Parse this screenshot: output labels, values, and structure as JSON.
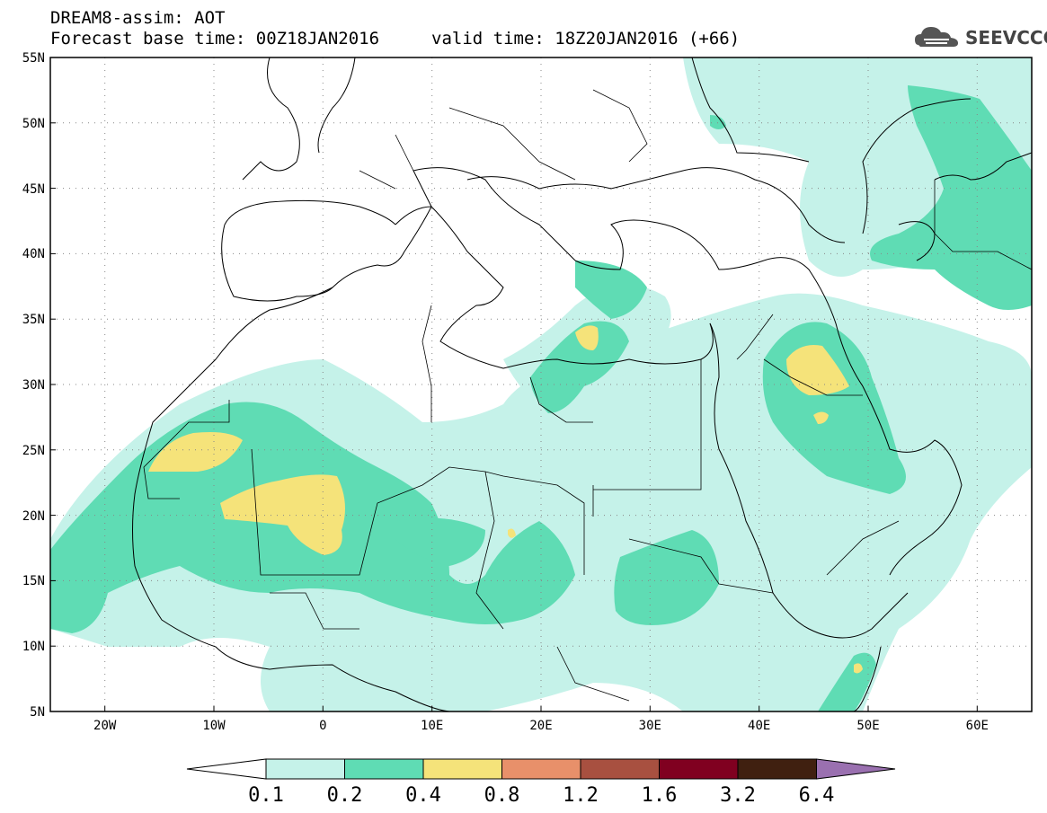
{
  "header": {
    "title": "DREAM8-assim: AOT",
    "base_time": "Forecast base time: 00Z18JAN2016",
    "valid_time": "valid time: 18Z20JAN2016 (+66)"
  },
  "logo": {
    "text": "SEEVCCC",
    "icon": "cloud-icon"
  },
  "map": {
    "extent": {
      "lon": [
        -25,
        65
      ],
      "lat": [
        5,
        55
      ]
    },
    "lat_ticks": [
      "55N",
      "50N",
      "45N",
      "40N",
      "35N",
      "30N",
      "25N",
      "20N",
      "15N",
      "10N",
      "5N"
    ],
    "lon_ticks": [
      "20W",
      "10W",
      "0",
      "10E",
      "20E",
      "30E",
      "40E",
      "50E",
      "60E"
    ],
    "grid": true,
    "grid_style": "dotted",
    "colors": {
      "lvl_01_02": "#c5f2e9",
      "lvl_02_04": "#5fdcb4",
      "lvl_04_08": "#f5e37a",
      "border": "#000000"
    }
  },
  "colorbar": {
    "labels": [
      "0.1",
      "0.2",
      "0.4",
      "0.8",
      "1.2",
      "1.6",
      "3.2",
      "6.4"
    ],
    "colors": [
      "#c5f2e9",
      "#5fdcb4",
      "#f5e37a",
      "#e8906a",
      "#a85040",
      "#800020",
      "#402010"
    ],
    "under_color": "#ffffff",
    "over_color": "#9a70b0"
  }
}
